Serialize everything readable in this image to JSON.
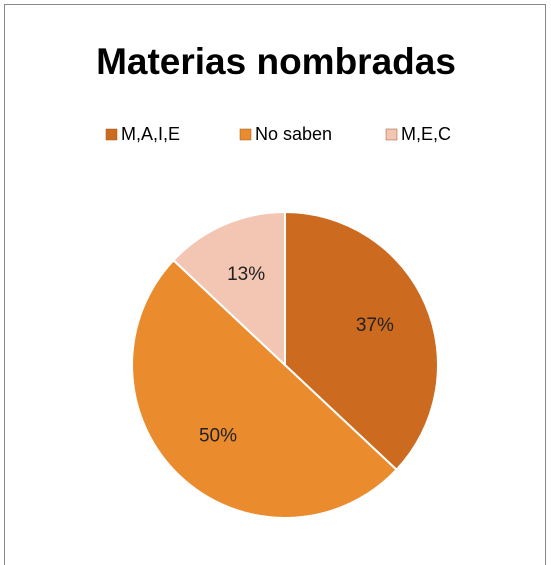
{
  "chart_data": {
    "type": "pie",
    "title": "Materias nombradas",
    "categories": [
      "M,A,I,E",
      "No saben",
      "M,E,C"
    ],
    "values": [
      37,
      50,
      13
    ],
    "value_labels": [
      "37%",
      "50%",
      "13%"
    ],
    "colors": [
      "#cc6a1f",
      "#ea8b2e",
      "#f2c6b2"
    ],
    "legend": "top"
  }
}
